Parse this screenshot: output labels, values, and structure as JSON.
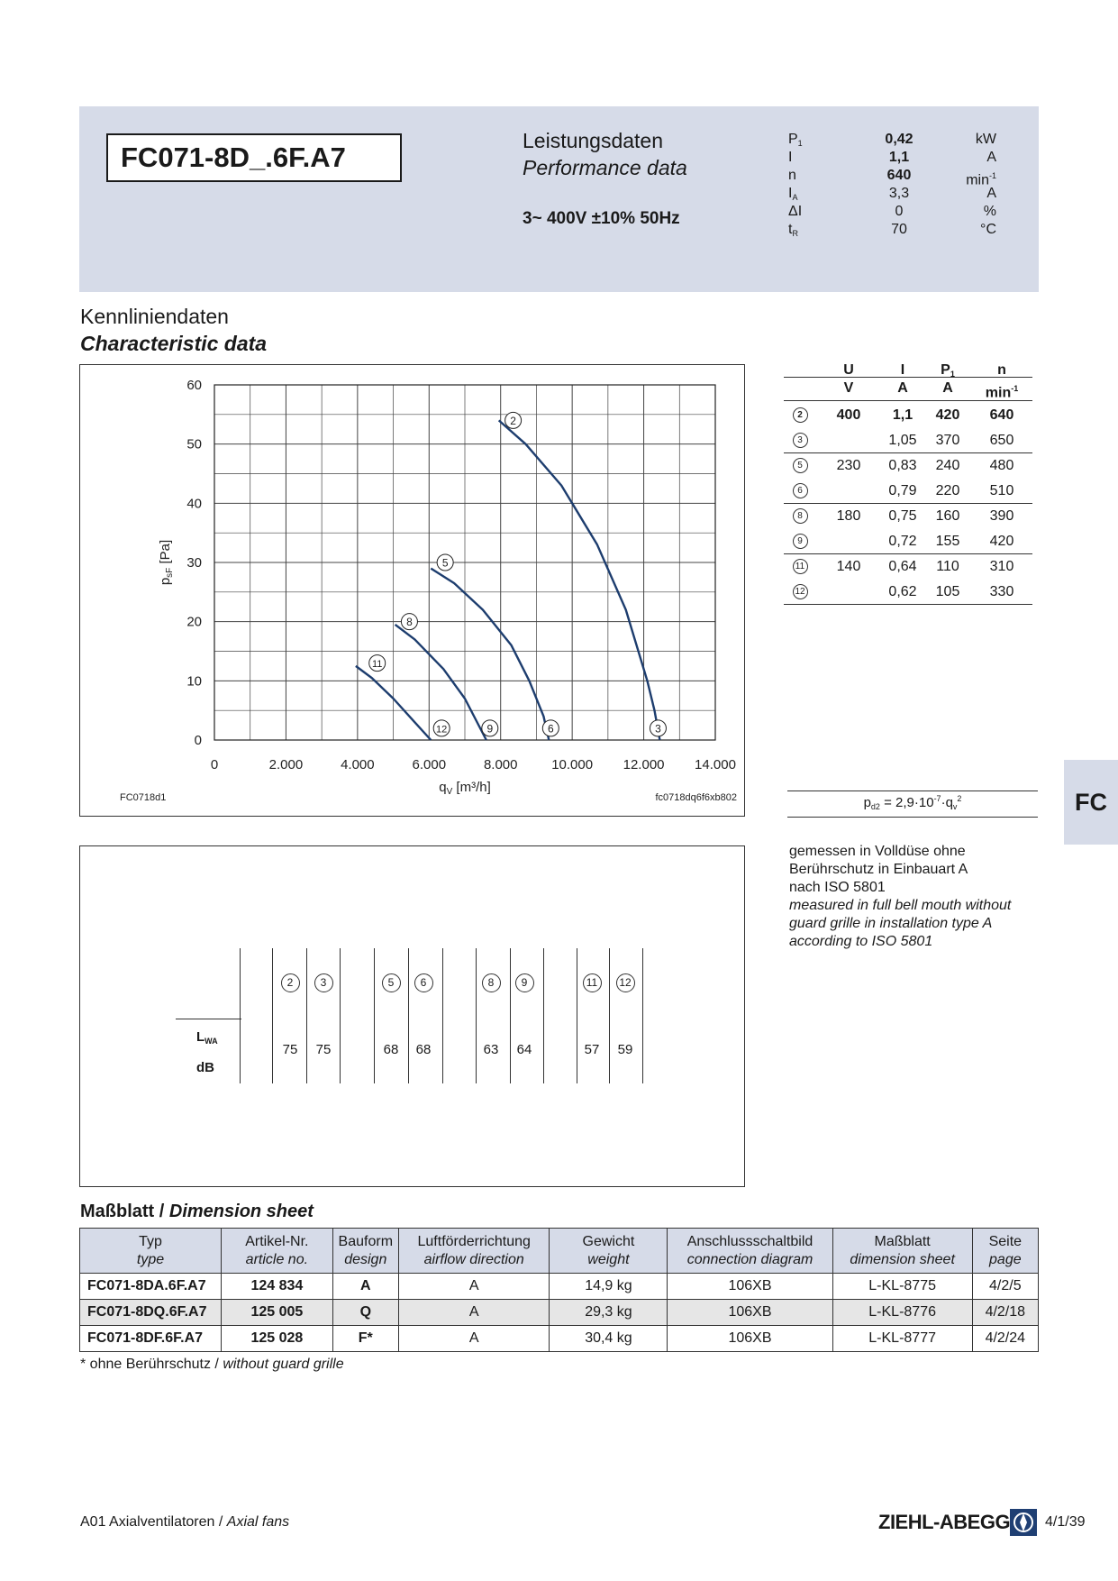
{
  "header": {
    "model": "FC071-8D_.6F.A7",
    "perf_title_de": "Leistungsdaten",
    "perf_title_en": "Performance data",
    "voltage": "3~ 400V ±10% 50Hz",
    "specs": [
      {
        "sym": "P",
        "sub": "1",
        "val": "0,42",
        "unit": "kW",
        "bold": true
      },
      {
        "sym": "I",
        "sub": "",
        "val": "1,1",
        "unit": "A",
        "bold": true
      },
      {
        "sym": "n",
        "sub": "",
        "val": "640",
        "unit": "min-1",
        "bold": true
      },
      {
        "sym": "I",
        "sub": "A",
        "val": "3,3",
        "unit": "A",
        "bold": false
      },
      {
        "sym": "ΔI",
        "sub": "",
        "val": "0",
        "unit": "%",
        "bold": false
      },
      {
        "sym": "t",
        "sub": "R",
        "val": "70",
        "unit": "°C",
        "bold": false
      }
    ]
  },
  "section": {
    "title_de": "Kennliniendaten",
    "title_en": "Characteristic data"
  },
  "chart_data": {
    "type": "line",
    "xlabel": "qV [m³/h]",
    "ylabel": "psF [Pa]",
    "xlim": [
      0,
      14000
    ],
    "ylim": [
      0,
      60
    ],
    "x_ticks": [
      "0",
      "2.000",
      "4.000",
      "6.000",
      "8.000",
      "10.000",
      "12.000",
      "14.000"
    ],
    "y_ticks": [
      "0",
      "10",
      "20",
      "30",
      "40",
      "50",
      "60"
    ],
    "grid": true,
    "code_left": "FC0718d1",
    "code_right": "fc0718dq6f6xb802",
    "series": [
      {
        "name": "2",
        "points": [
          [
            7950,
            54
          ],
          [
            8700,
            50
          ],
          [
            9700,
            43
          ],
          [
            10700,
            33
          ],
          [
            11500,
            22
          ],
          [
            12100,
            10
          ],
          [
            12300,
            5
          ],
          [
            12450,
            0
          ]
        ],
        "label_at": [
          8350,
          54
        ]
      },
      {
        "name": "3",
        "label_at": [
          12400,
          2
        ]
      },
      {
        "name": "5",
        "points": [
          [
            6050,
            29
          ],
          [
            6700,
            26.5
          ],
          [
            7500,
            22
          ],
          [
            8300,
            16
          ],
          [
            8800,
            10
          ],
          [
            9200,
            4
          ],
          [
            9350,
            0
          ]
        ],
        "label_at": [
          6450,
          30
        ]
      },
      {
        "name": "6",
        "label_at": [
          9400,
          2
        ]
      },
      {
        "name": "8",
        "points": [
          [
            5050,
            19.5
          ],
          [
            5600,
            17
          ],
          [
            6400,
            12
          ],
          [
            7000,
            7
          ],
          [
            7600,
            0
          ]
        ],
        "label_at": [
          5450,
          20
        ]
      },
      {
        "name": "9",
        "label_at": [
          7700,
          2
        ]
      },
      {
        "name": "11",
        "points": [
          [
            3950,
            12.5
          ],
          [
            4400,
            10.5
          ],
          [
            5000,
            7
          ],
          [
            5600,
            3
          ],
          [
            6050,
            0
          ]
        ],
        "label_at": [
          4550,
          13
        ]
      },
      {
        "name": "12",
        "label_at": [
          6350,
          2
        ]
      }
    ]
  },
  "char_table": {
    "headers": [
      "",
      "U",
      "I",
      "P1",
      "n"
    ],
    "units": [
      "",
      "V",
      "A",
      "A",
      "min-1"
    ],
    "rows": [
      {
        "id": "2",
        "U": "400",
        "I": "1,1",
        "P": "420",
        "n": "640",
        "bold": true
      },
      {
        "id": "3",
        "U": "",
        "I": "1,05",
        "P": "370",
        "n": "650",
        "bold": false
      },
      {
        "id": "5",
        "U": "230",
        "I": "0,83",
        "P": "240",
        "n": "480",
        "bold": false
      },
      {
        "id": "6",
        "U": "",
        "I": "0,79",
        "P": "220",
        "n": "510",
        "bold": false
      },
      {
        "id": "8",
        "U": "180",
        "I": "0,75",
        "P": "160",
        "n": "390",
        "bold": false
      },
      {
        "id": "9",
        "U": "",
        "I": "0,72",
        "P": "155",
        "n": "420",
        "bold": false
      },
      {
        "id": "11",
        "U": "140",
        "I": "0,64",
        "P": "110",
        "n": "310",
        "bold": false
      },
      {
        "id": "12",
        "U": "",
        "I": "0,62",
        "P": "105",
        "n": "330",
        "bold": false
      }
    ]
  },
  "formula": "pd2 = 2,9·10-7·qv2",
  "tab": "FC",
  "note": {
    "de": [
      "gemessen in Volldüse ohne",
      "Berührschutz in Einbauart A",
      "nach ISO 5801"
    ],
    "en": [
      "measured in full bell mouth without",
      "guard grille in installation type A",
      "according to ISO 5801"
    ]
  },
  "sound": {
    "label_lwa": "LWA",
    "label_db": "dB",
    "points": [
      "2",
      "3",
      "5",
      "6",
      "8",
      "9",
      "11",
      "12"
    ],
    "values": [
      "75",
      "75",
      "68",
      "68",
      "63",
      "64",
      "57",
      "59"
    ]
  },
  "dimension": {
    "title_de": "Maßblatt",
    "title_sep": " / ",
    "title_en": "Dimension sheet",
    "headers": [
      {
        "de": "Typ",
        "en": "type"
      },
      {
        "de": "Artikel-Nr.",
        "en": "article no."
      },
      {
        "de": "Bauform",
        "en": "design"
      },
      {
        "de": "Luftförderrichtung",
        "en": "airflow direction"
      },
      {
        "de": "Gewicht",
        "en": "weight"
      },
      {
        "de": "Anschlussschaltbild",
        "en": "connection diagram"
      },
      {
        "de": "Maßblatt",
        "en": "dimension sheet"
      },
      {
        "de": "Seite",
        "en": "page"
      }
    ],
    "rows": [
      [
        "FC071-8DA.6F.A7",
        "124 834",
        "A",
        "A",
        "14,9 kg",
        "106XB",
        "L-KL-8775",
        "4/2/5"
      ],
      [
        "FC071-8DQ.6F.A7",
        "125 005",
        "Q",
        "A",
        "29,3 kg",
        "106XB",
        "L-KL-8776",
        "4/2/18"
      ],
      [
        "FC071-8DF.6F.A7",
        "125 028",
        "F*",
        "A",
        "30,4 kg",
        "106XB",
        "L-KL-8777",
        "4/2/24"
      ]
    ],
    "footnote_de": "* ohne Berührschutz / ",
    "footnote_en": "without guard grille"
  },
  "footer": {
    "left_de": "A01 Axialventilatoren / ",
    "left_en": "Axial fans",
    "logo": "ZIEHL-ABEGG",
    "page": "4/1/39"
  }
}
